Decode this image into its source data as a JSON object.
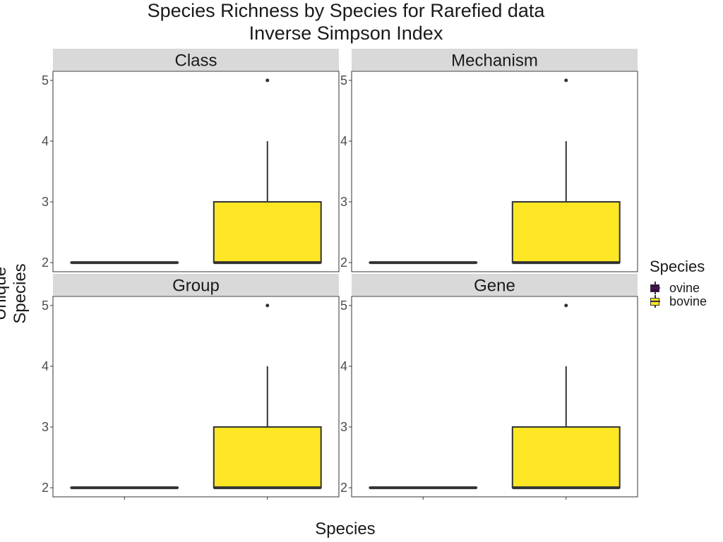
{
  "title_line1": "Species Richness by Species for Rarefied data",
  "title_line2": "Inverse Simpson Index",
  "xlabel": "Species",
  "ylabel": "Unique Species",
  "legend": {
    "title": "Species",
    "items": [
      {
        "label": "ovine",
        "color": "#440154"
      },
      {
        "label": "bovine",
        "color": "#FDE725"
      }
    ]
  },
  "chart_data": [
    {
      "type": "box",
      "panel": "Class",
      "ylim": [
        1.85,
        5.15
      ],
      "yticks": [
        2,
        3,
        4,
        5
      ],
      "categories": [
        "ovine",
        "bovine"
      ],
      "boxes": [
        {
          "name": "ovine",
          "color": "#440154",
          "min": 2,
          "q1": 2,
          "median": 2,
          "q3": 2,
          "max": 2,
          "outliers": []
        },
        {
          "name": "bovine",
          "color": "#FDE725",
          "min": 2,
          "q1": 2,
          "median": 2,
          "q3": 3,
          "max": 4,
          "outliers": [
            5
          ]
        }
      ]
    },
    {
      "type": "box",
      "panel": "Mechanism",
      "ylim": [
        1.85,
        5.15
      ],
      "yticks": [
        2,
        3,
        4,
        5
      ],
      "categories": [
        "ovine",
        "bovine"
      ],
      "boxes": [
        {
          "name": "ovine",
          "color": "#440154",
          "min": 2,
          "q1": 2,
          "median": 2,
          "q3": 2,
          "max": 2,
          "outliers": []
        },
        {
          "name": "bovine",
          "color": "#FDE725",
          "min": 2,
          "q1": 2,
          "median": 2,
          "q3": 3,
          "max": 4,
          "outliers": [
            5
          ]
        }
      ]
    },
    {
      "type": "box",
      "panel": "Group",
      "ylim": [
        1.85,
        5.15
      ],
      "yticks": [
        2,
        3,
        4,
        5
      ],
      "categories": [
        "ovine",
        "bovine"
      ],
      "boxes": [
        {
          "name": "ovine",
          "color": "#440154",
          "min": 2,
          "q1": 2,
          "median": 2,
          "q3": 2,
          "max": 2,
          "outliers": []
        },
        {
          "name": "bovine",
          "color": "#FDE725",
          "min": 2,
          "q1": 2,
          "median": 2,
          "q3": 3,
          "max": 4,
          "outliers": [
            5
          ]
        }
      ]
    },
    {
      "type": "box",
      "panel": "Gene",
      "ylim": [
        1.85,
        5.15
      ],
      "yticks": [
        2,
        3,
        4,
        5
      ],
      "categories": [
        "ovine",
        "bovine"
      ],
      "boxes": [
        {
          "name": "ovine",
          "color": "#440154",
          "min": 2,
          "q1": 2,
          "median": 2,
          "q3": 2,
          "max": 2,
          "outliers": []
        },
        {
          "name": "bovine",
          "color": "#FDE725",
          "min": 2,
          "q1": 2,
          "median": 2,
          "q3": 3,
          "max": 4,
          "outliers": [
            5
          ]
        }
      ]
    }
  ]
}
